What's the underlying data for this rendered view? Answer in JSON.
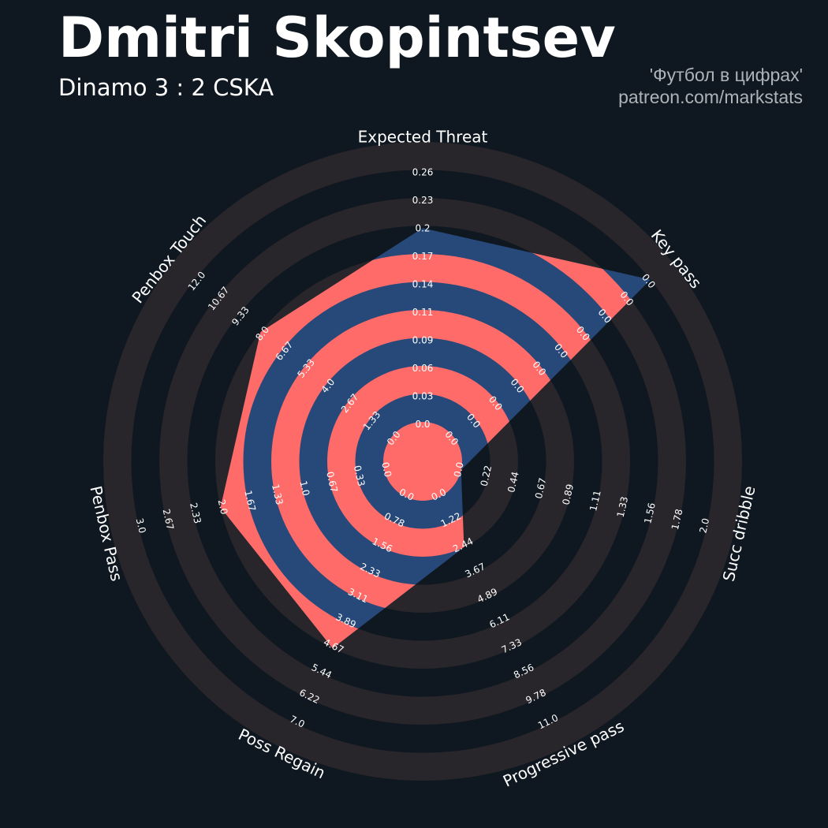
{
  "header": {
    "title": "Dmitri Skopintsev",
    "subtitle": "Dinamo 3 : 2 CSKA",
    "credit_line1": "'Футбол в цифрах'",
    "credit_line2": "patreon.com/markstats"
  },
  "colors": {
    "background": "#0f1820",
    "ring_band": "#28252b",
    "player_fill": "#27497a",
    "player_band": "#ff6b68",
    "text": "#ffffff",
    "credit": "#aeb3b8"
  },
  "chart_data": {
    "type": "radar",
    "params": [
      "Expected Threat",
      "Key pass",
      "Succ dribble",
      "Progressive pass",
      "Poss Regain",
      "Penbox Pass",
      "Penbox Touch"
    ],
    "ranges": [
      [
        0.0,
        0.26
      ],
      [
        0.0,
        0.0
      ],
      [
        0.0,
        2.0
      ],
      [
        0.0,
        11.0
      ],
      [
        0.0,
        7.0
      ],
      [
        0.0,
        3.0
      ],
      [
        0.0,
        12.0
      ]
    ],
    "ticks": [
      [
        "0.0",
        "0.03",
        "0.06",
        "0.09",
        "0.11",
        "0.14",
        "0.17",
        "0.2",
        "0.23",
        "0.26"
      ],
      [
        "0.0",
        "0.0",
        "0.0",
        "0.0",
        "0.0",
        "0.0",
        "0.0",
        "0.0",
        "0.0",
        "0.0"
      ],
      [
        "0.0",
        "0.22",
        "0.44",
        "0.67",
        "0.89",
        "1.11",
        "1.33",
        "1.56",
        "1.78",
        "2.0"
      ],
      [
        "0.0",
        "1.22",
        "2.44",
        "3.67",
        "4.89",
        "6.11",
        "7.33",
        "8.56",
        "9.78",
        "11.0"
      ],
      [
        "0.0",
        "0.78",
        "1.56",
        "2.33",
        "3.11",
        "3.89",
        "4.67",
        "5.44",
        "6.22",
        "7.0"
      ],
      [
        "0.0",
        "0.33",
        "0.67",
        "1.0",
        "1.33",
        "1.67",
        "2.0",
        "2.33",
        "2.67",
        "3.0"
      ],
      [
        "0.0",
        "1.33",
        "2.67",
        "4.0",
        "5.33",
        "6.67",
        "8.0",
        "9.33",
        "10.67",
        "12.0"
      ]
    ],
    "series": [
      {
        "values": [
          0.2,
          0.0,
          0.0,
          2.44,
          4.67,
          2.0,
          8.0
        ]
      }
    ],
    "grid": true,
    "legend": "none"
  }
}
